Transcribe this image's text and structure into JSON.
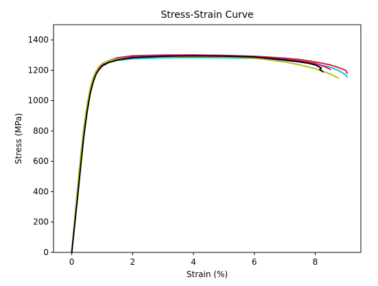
{
  "chart_data": {
    "type": "line",
    "title": "Stress-Strain Curve",
    "xlabel": "Strain (%)",
    "ylabel": "Stress (MPa)",
    "xlim": [
      -0.6,
      9.5
    ],
    "ylim": [
      0,
      1500
    ],
    "xticks": [
      0,
      2,
      4,
      6,
      8
    ],
    "xtick_labels": [
      "0",
      "2",
      "4",
      "6",
      "8"
    ],
    "yticks": [
      0,
      200,
      400,
      600,
      800,
      1000,
      1200,
      1400
    ],
    "ytick_labels": [
      "0",
      "200",
      "400",
      "600",
      "800",
      "1000",
      "1200",
      "1400"
    ],
    "grid": false,
    "legend": "none",
    "series": [
      {
        "color": "#d62728",
        "x": [
          0,
          0.1,
          0.2,
          0.3,
          0.4,
          0.5,
          0.6,
          0.7,
          0.8,
          0.9,
          1.0,
          1.2,
          1.5,
          2.0,
          3.0,
          4.0,
          5.0,
          6.0,
          7.0,
          7.5,
          8.0,
          8.5,
          8.8,
          9.0,
          9.05
        ],
        "y": [
          0,
          210,
          420,
          620,
          800,
          950,
          1060,
          1140,
          1190,
          1220,
          1240,
          1260,
          1278,
          1290,
          1298,
          1300,
          1298,
          1292,
          1280,
          1270,
          1255,
          1235,
          1215,
          1200,
          1180
        ]
      },
      {
        "color": "#17becf",
        "x": [
          0,
          0.1,
          0.2,
          0.3,
          0.4,
          0.5,
          0.6,
          0.7,
          0.8,
          0.9,
          1.0,
          1.2,
          1.5,
          2.0,
          3.0,
          4.0,
          5.0,
          6.0,
          7.0,
          7.5,
          8.0,
          8.5,
          8.8,
          9.0,
          9.05
        ],
        "y": [
          0,
          230,
          440,
          640,
          820,
          960,
          1070,
          1140,
          1180,
          1210,
          1230,
          1250,
          1265,
          1275,
          1282,
          1283,
          1282,
          1278,
          1265,
          1255,
          1240,
          1220,
          1195,
          1170,
          1155
        ]
      },
      {
        "color": "#c71585",
        "x": [
          0,
          0.1,
          0.2,
          0.3,
          0.4,
          0.5,
          0.6,
          0.7,
          0.8,
          0.9,
          1.0,
          1.2,
          1.5,
          2.0,
          3.0,
          4.0,
          5.0,
          6.0,
          7.0,
          7.5,
          8.0,
          8.3,
          8.5
        ],
        "y": [
          0,
          200,
          400,
          600,
          780,
          930,
          1050,
          1130,
          1185,
          1215,
          1238,
          1262,
          1282,
          1295,
          1300,
          1300,
          1297,
          1290,
          1275,
          1262,
          1245,
          1225,
          1205
        ]
      },
      {
        "color": "#bcbd22",
        "x": [
          0,
          0.1,
          0.2,
          0.3,
          0.4,
          0.5,
          0.6,
          0.7,
          0.8,
          0.9,
          1.0,
          1.2,
          1.5,
          2.0,
          3.0,
          4.0,
          5.0,
          6.0,
          7.0,
          7.5,
          8.0,
          8.5,
          8.75
        ],
        "y": [
          0,
          225,
          445,
          650,
          830,
          970,
          1080,
          1150,
          1195,
          1225,
          1245,
          1262,
          1275,
          1283,
          1290,
          1292,
          1288,
          1280,
          1255,
          1235,
          1210,
          1175,
          1150
        ]
      },
      {
        "color": "#000000",
        "x": [
          0,
          0.1,
          0.2,
          0.3,
          0.4,
          0.5,
          0.6,
          0.7,
          0.8,
          0.9,
          1.0,
          1.2,
          1.5,
          2.0,
          3.0,
          4.0,
          5.0,
          6.0,
          7.0,
          7.5,
          7.8,
          8.0,
          8.1,
          8.2,
          8.15,
          8.25
        ],
        "y": [
          0,
          190,
          380,
          580,
          770,
          920,
          1040,
          1120,
          1175,
          1205,
          1228,
          1250,
          1268,
          1283,
          1292,
          1295,
          1293,
          1287,
          1268,
          1255,
          1245,
          1235,
          1225,
          1215,
          1205,
          1190
        ]
      }
    ]
  }
}
